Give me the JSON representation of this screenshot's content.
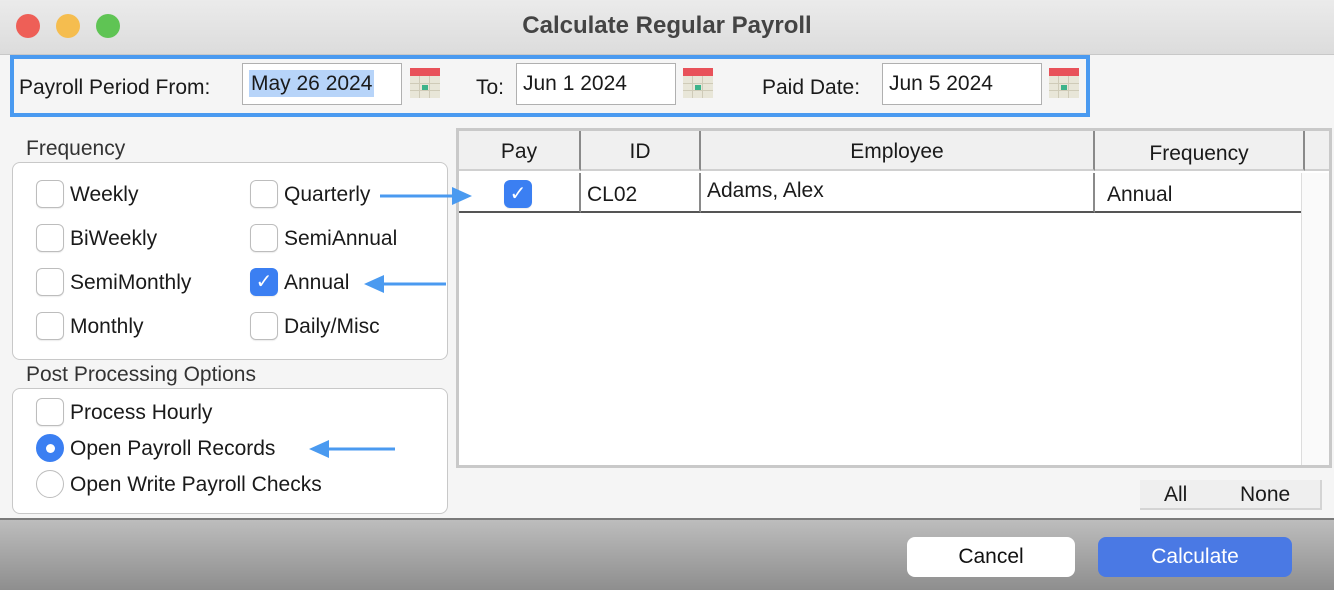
{
  "window": {
    "title": "Calculate Regular Payroll"
  },
  "period": {
    "from_label": "Payroll Period From:",
    "from_value": "May 26 2024",
    "to_label": "To:",
    "to_value": "Jun 1 2024",
    "paid_label": "Paid Date:",
    "paid_value": "Jun 5 2024"
  },
  "frequency": {
    "label": "Frequency",
    "options": [
      {
        "label": "Weekly",
        "checked": false
      },
      {
        "label": "Quarterly",
        "checked": false
      },
      {
        "label": "BiWeekly",
        "checked": false
      },
      {
        "label": "SemiAnnual",
        "checked": false
      },
      {
        "label": "SemiMonthly",
        "checked": false
      },
      {
        "label": "Annual",
        "checked": true
      },
      {
        "label": "Monthly",
        "checked": false
      },
      {
        "label": "Daily/Misc",
        "checked": false
      }
    ]
  },
  "post": {
    "label": "Post Processing Options",
    "process_hourly": "Process Hourly",
    "open_records": "Open Payroll Records",
    "open_checks": "Open Write Payroll Checks",
    "selected": "Open Payroll Records"
  },
  "table": {
    "columns": [
      "Pay",
      "ID",
      "Employee",
      "Frequency"
    ],
    "rows": [
      {
        "pay": true,
        "id": "CL02",
        "employee": "Adams, Alex",
        "frequency": "Annual"
      }
    ]
  },
  "select": {
    "all": "All",
    "none": "None"
  },
  "buttons": {
    "cancel": "Cancel",
    "calculate": "Calculate"
  },
  "colors": {
    "accent": "#3b7ff2",
    "annotation": "#4a9af0",
    "highlight": "#b7d4f9"
  }
}
